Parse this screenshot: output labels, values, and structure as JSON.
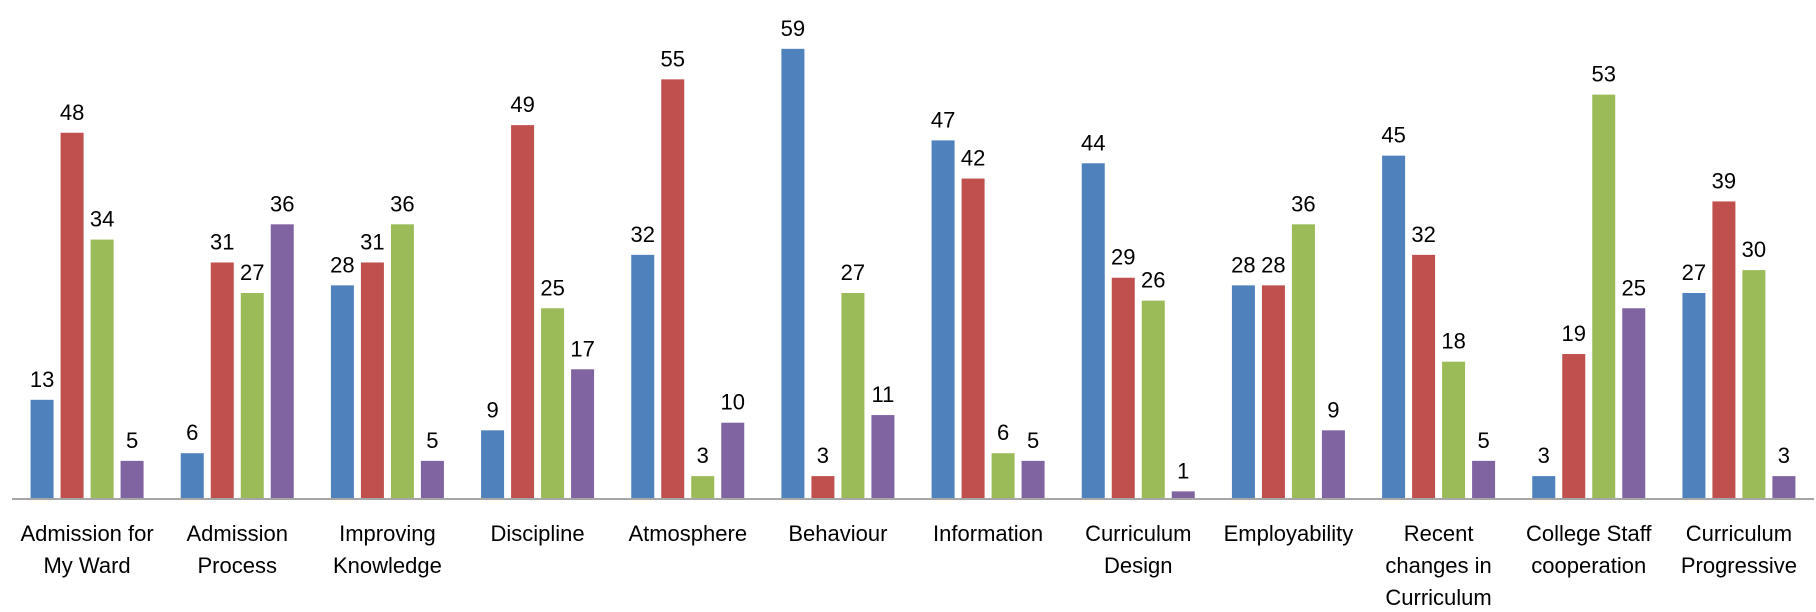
{
  "chart_data": {
    "type": "bar",
    "title": "",
    "xlabel": "",
    "ylabel": "",
    "ylim": [
      0,
      65
    ],
    "grid": false,
    "categories": [
      [
        "Admission for",
        "My Ward"
      ],
      [
        "Admission",
        "Process"
      ],
      [
        "Improving",
        "Knowledge"
      ],
      [
        "Discipline"
      ],
      [
        "Atmosphere"
      ],
      [
        "Behaviour"
      ],
      [
        "Information"
      ],
      [
        "Curriculum",
        "Design"
      ],
      [
        "Employability"
      ],
      [
        "Recent",
        "changes in",
        "Curriculum"
      ],
      [
        "College Staff",
        "cooperation"
      ],
      [
        "Curriculum",
        "Progressive"
      ]
    ],
    "series": [
      {
        "color": "#4F81BD",
        "values": [
          13,
          6,
          28,
          9,
          32,
          59,
          47,
          44,
          28,
          45,
          3,
          27
        ]
      },
      {
        "color": "#C0504D",
        "values": [
          48,
          31,
          31,
          49,
          55,
          3,
          42,
          29,
          28,
          32,
          19,
          39
        ]
      },
      {
        "color": "#9BBB59",
        "values": [
          34,
          27,
          36,
          25,
          3,
          27,
          6,
          26,
          36,
          18,
          53,
          30
        ]
      },
      {
        "color": "#8064A2",
        "values": [
          5,
          36,
          5,
          17,
          10,
          11,
          5,
          1,
          9,
          5,
          25,
          3
        ]
      }
    ]
  }
}
